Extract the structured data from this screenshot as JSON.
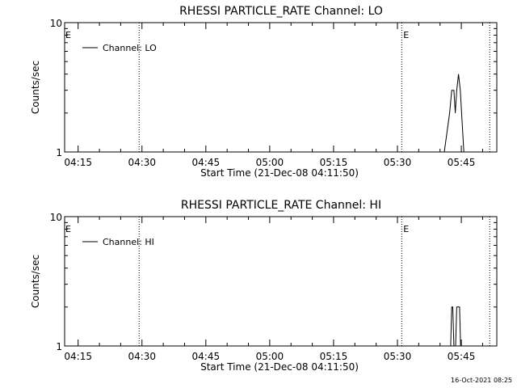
{
  "footer": {
    "timestamp": "16-Oct-2021 08:25"
  },
  "chart_data": [
    {
      "type": "line",
      "title": "RHESSI PARTICLE_RATE Channel: LO",
      "xlabel": "Start Time (21-Dec-08 04:11:50)",
      "ylabel": "Counts/sec",
      "xlim": [
        "04:11:50",
        "05:53:20"
      ],
      "ylim": [
        1,
        10
      ],
      "yscale": "log",
      "xticks": [
        "04:15",
        "04:30",
        "04:45",
        "05:00",
        "05:15",
        "05:30",
        "05:45"
      ],
      "yticks": [
        "1",
        "10"
      ],
      "grid": false,
      "legend": {
        "position": "top-left",
        "entries": [
          "Channel: LO"
        ]
      },
      "markers": [
        {
          "time": "04:29:20"
        },
        {
          "time": "05:31:00",
          "label": "E"
        },
        {
          "time": "05:51:40"
        }
      ],
      "edge_markers": [
        "E"
      ],
      "series": [
        {
          "name": "Channel: LO",
          "points": [
            [
              "05:41:00",
              1
            ],
            [
              "05:42:15",
              2
            ],
            [
              "05:42:45",
              3
            ],
            [
              "05:43:15",
              3
            ],
            [
              "05:43:35",
              2
            ],
            [
              "05:43:55",
              3
            ],
            [
              "05:44:20",
              4
            ],
            [
              "05:44:45",
              3
            ],
            [
              "05:45:35",
              1
            ]
          ]
        }
      ]
    },
    {
      "type": "line",
      "title": "RHESSI PARTICLE_RATE Channel: HI",
      "xlabel": "Start Time (21-Dec-08 04:11:50)",
      "ylabel": "Counts/sec",
      "xlim": [
        "04:11:50",
        "05:53:20"
      ],
      "ylim": [
        1,
        10
      ],
      "yscale": "log",
      "xticks": [
        "04:15",
        "04:30",
        "04:45",
        "05:00",
        "05:15",
        "05:30",
        "05:45"
      ],
      "yticks": [
        "1",
        "10"
      ],
      "grid": false,
      "legend": {
        "position": "top-left",
        "entries": [
          "Channel: HI"
        ]
      },
      "markers": [
        {
          "time": "04:29:20"
        },
        {
          "time": "05:31:00",
          "label": "E"
        },
        {
          "time": "05:51:40"
        }
      ],
      "edge_markers": [
        "E"
      ],
      "series": [
        {
          "name": "Channel: HI",
          "points": [
            [
              "05:42:30",
              1
            ],
            [
              "05:42:45",
              2
            ],
            [
              "05:43:00",
              2
            ],
            [
              "05:43:15",
              1
            ],
            [
              "05:43:40",
              1
            ],
            [
              "05:43:55",
              2
            ],
            [
              "05:44:35",
              2
            ],
            [
              "05:44:50",
              1
            ]
          ]
        }
      ]
    }
  ]
}
